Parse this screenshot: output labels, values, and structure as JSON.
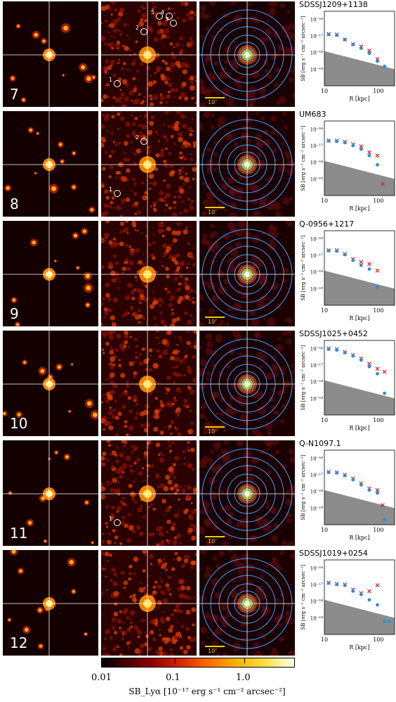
{
  "rows": [
    {
      "index": "7",
      "object": "SDSSJ1209+1138",
      "markers": [
        "1",
        "2",
        "3",
        "4",
        "5"
      ],
      "chart_data": {
        "type": "scatter",
        "xlabel": "R [kpc]",
        "ylabel": "SB [erg s⁻¹ cm⁻² arcsec⁻²]",
        "x_log": true,
        "y_log": true,
        "xlim": [
          10,
          200
        ],
        "ylim": [
          1e-20,
          3e-16
        ],
        "series": [
          {
            "marker": "x",
            "color": "#d62020",
            "x": [
              12,
              17,
              24,
              34,
              48,
              68,
              96
            ],
            "y": [
              1.3e-17,
              1.2e-17,
              6e-18,
              3.2e-18,
              2.3e-18,
              1.3e-18,
              4e-19
            ]
          },
          {
            "marker": "o",
            "color": "#2a8ee0",
            "x": [
              12,
              17,
              24,
              34,
              48,
              68,
              96,
              130
            ],
            "y": [
              1.2e-17,
              1.1e-17,
              6e-18,
              3e-18,
              1.8e-18,
              9e-19,
              3e-19,
              1.5e-19
            ]
          }
        ]
      }
    },
    {
      "index": "8",
      "object": "UM683",
      "markers": [
        "1",
        "2"
      ],
      "chart_data": {
        "type": "scatter",
        "xlabel": "R [kpc]",
        "ylabel": "SB [erg s⁻¹ cm⁻² arcsec⁻²]",
        "x_log": true,
        "y_log": true,
        "xlim": [
          10,
          200
        ],
        "ylim": [
          1e-20,
          3e-16
        ],
        "series": [
          {
            "marker": "x",
            "color": "#d62020",
            "x": [
              12,
              17,
              24,
              34,
              48,
              68,
              96,
              120
            ],
            "y": [
              2e-17,
              2e-17,
              1.7e-17,
              1.2e-17,
              9e-18,
              4e-18,
              2.5e-18,
              5e-20
            ]
          },
          {
            "marker": "o",
            "color": "#2a8ee0",
            "x": [
              12,
              17,
              24,
              34,
              48,
              68,
              96
            ],
            "y": [
              1.9e-17,
              1.8e-17,
              1.5e-17,
              1e-17,
              6e-18,
              2.5e-18,
              7e-19
            ]
          }
        ]
      }
    },
    {
      "index": "9",
      "object": "Q-0956+1217",
      "markers": [],
      "chart_data": {
        "type": "scatter",
        "xlabel": "R [kpc]",
        "ylabel": "SB [erg s⁻¹ cm⁻² arcsec⁻²]",
        "x_log": true,
        "y_log": true,
        "xlim": [
          10,
          200
        ],
        "ylim": [
          1e-20,
          3e-16
        ],
        "series": [
          {
            "marker": "x",
            "color": "#d62020",
            "x": [
              12,
              17,
              24,
              34,
              48,
              68,
              96
            ],
            "y": [
              2e-17,
              2e-17,
              1.2e-17,
              6e-18,
              4e-18,
              3e-18,
              1.2e-18
            ]
          },
          {
            "marker": "o",
            "color": "#2a8ee0",
            "x": [
              12,
              17,
              24,
              34,
              48,
              68,
              96
            ],
            "y": [
              1.9e-17,
              1.8e-17,
              1.1e-17,
              5e-18,
              2.5e-18,
              1.5e-18,
              1.2e-19
            ]
          }
        ]
      }
    },
    {
      "index": "10",
      "object": "SDSSJ1025+0452",
      "markers": [],
      "chart_data": {
        "type": "scatter",
        "xlabel": "R [kpc]",
        "ylabel": "SB [erg s⁻¹ cm⁻² arcsec⁻²]",
        "x_log": true,
        "y_log": true,
        "xlim": [
          10,
          200
        ],
        "ylim": [
          1e-20,
          3e-16
        ],
        "series": [
          {
            "marker": "x",
            "color": "#d62020",
            "x": [
              12,
              17,
              24,
              34,
              48,
              68,
              96,
              130
            ],
            "y": [
              1e-16,
              9e-17,
              6e-17,
              4e-17,
              2.5e-17,
              1.2e-17,
              6e-18,
              4e-18
            ]
          },
          {
            "marker": "o",
            "color": "#2a8ee0",
            "x": [
              12,
              17,
              24,
              34,
              48,
              68,
              96,
              130
            ],
            "y": [
              9e-17,
              8e-17,
              5.5e-17,
              3.5e-17,
              2e-17,
              8e-18,
              3e-18,
              2e-19
            ]
          }
        ]
      }
    },
    {
      "index": "11",
      "object": "Q-N1097.1",
      "markers": [
        "1"
      ],
      "chart_data": {
        "type": "scatter",
        "xlabel": "R [kpc]",
        "ylabel": "SB [erg s⁻¹ cm⁻² arcsec⁻²]",
        "x_log": true,
        "y_log": true,
        "xlim": [
          10,
          200
        ],
        "ylim": [
          1e-20,
          3e-16
        ],
        "series": [
          {
            "marker": "x",
            "color": "#d62020",
            "x": [
              12,
              17,
              24,
              34,
              48,
              68,
              96,
              120
            ],
            "y": [
              1.5e-17,
              1.4e-17,
              1e-17,
              6e-18,
              3e-18,
              1.5e-18,
              1.2e-18,
              1.5e-19
            ]
          },
          {
            "marker": "o",
            "color": "#2a8ee0",
            "x": [
              12,
              17,
              24,
              34,
              48,
              68,
              96,
              130
            ],
            "y": [
              1.4e-17,
              1.3e-17,
              9e-18,
              5e-18,
              2.5e-18,
              1.2e-18,
              8e-19,
              2e-20
            ]
          }
        ]
      }
    },
    {
      "index": "12",
      "object": "SDSSJ1019+0254",
      "markers": [],
      "chart_data": {
        "type": "scatter",
        "xlabel": "R [kpc]",
        "ylabel": "SB [erg s⁻¹ cm⁻² arcsec⁻²]",
        "x_log": true,
        "y_log": true,
        "xlim": [
          10,
          200
        ],
        "ylim": [
          1e-20,
          3e-16
        ],
        "series": [
          {
            "marker": "x",
            "color": "#d62020",
            "x": [
              12,
              17,
              24,
              34,
              48,
              68,
              96
            ],
            "y": [
              1.3e-17,
              1.1e-17,
              1e-17,
              5e-18,
              3e-18,
              4e-18,
              9e-18
            ]
          },
          {
            "marker": "o",
            "color": "#2a8ee0",
            "x": [
              12,
              17,
              24,
              34,
              48,
              68,
              96,
              130,
              160
            ],
            "y": [
              1.2e-17,
              1e-17,
              9e-18,
              4e-18,
              2.5e-18,
              1.2e-18,
              6e-19,
              6e-20,
              6e-20
            ]
          }
        ]
      }
    }
  ],
  "plot_axes": {
    "ylabel": "SB [erg s⁻¹ cm⁻² arcsec⁻²]",
    "xlabel": "R [kpc]",
    "yticks": [
      "10⁻¹⁶",
      "10⁻¹⁷",
      "10⁻¹⁸",
      "10⁻¹⁹"
    ],
    "xticks": [
      "10",
      "100"
    ]
  },
  "scalebar_label": "10″",
  "colorbar": {
    "ticks": [
      "0.01",
      "0.1",
      "1.0"
    ],
    "label": "SB_Lyα [10⁻¹⁷ erg s⁻¹ cm⁻² arcsec⁻²]"
  }
}
